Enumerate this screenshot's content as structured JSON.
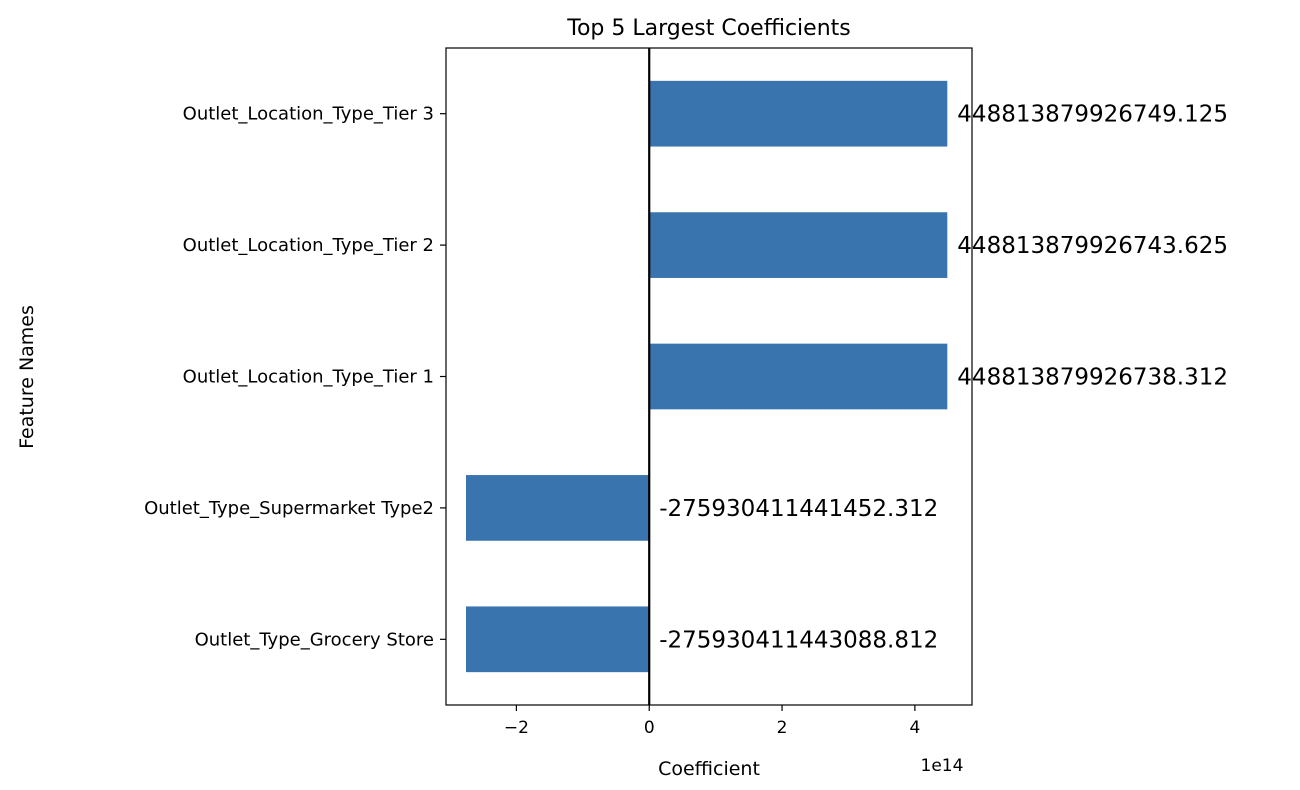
{
  "chart_data": {
    "type": "bar",
    "orientation": "horizontal",
    "title": "Top 5 Largest Coefficients",
    "xlabel": "Coefficient",
    "ylabel": "Feature Names",
    "x_offset_label": "1e14",
    "x_scale": 100000000000000.0,
    "xlim": [
      -3.06,
      4.86
    ],
    "xticks": [
      -2,
      0,
      2,
      4
    ],
    "xtick_labels": [
      "−2",
      "0",
      "2",
      "4"
    ],
    "grid": false,
    "bar_color": "#3a74ae",
    "zero_line": true,
    "categories": [
      "Outlet_Location_Type_Tier 3",
      "Outlet_Location_Type_Tier 2",
      "Outlet_Location_Type_Tier 1",
      "Outlet_Type_Supermarket Type2",
      "Outlet_Type_Grocery Store"
    ],
    "values": [
      448813879926749.1,
      448813879926743.6,
      448813879926738.3,
      -275930411441452.3,
      -275930411443088.8
    ],
    "data_labels": [
      "448813879926749.125",
      "448813879926743.625",
      "448813879926738.312",
      "-275930411441452.312",
      "-275930411443088.812"
    ]
  }
}
